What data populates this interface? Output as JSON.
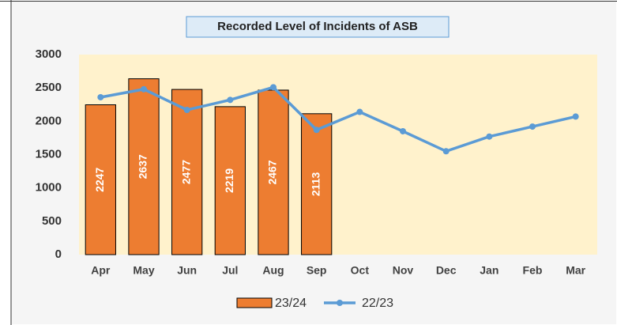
{
  "chart_data": {
    "type": "bar_line",
    "title": "Recorded Level of Incidents of ASB",
    "categories": [
      "Apr",
      "May",
      "Jun",
      "Jul",
      "Aug",
      "Sep",
      "Oct",
      "Nov",
      "Dec",
      "Jan",
      "Feb",
      "Mar"
    ],
    "series": [
      {
        "name": "23/24",
        "type": "bar",
        "color": "#ed7d31",
        "values": [
          2247,
          2637,
          2477,
          2219,
          2467,
          2113,
          null,
          null,
          null,
          null,
          null,
          null
        ]
      },
      {
        "name": "22/23",
        "type": "line",
        "color": "#5b9bd5",
        "values": [
          2360,
          2480,
          2170,
          2320,
          2510,
          1870,
          2140,
          1850,
          1550,
          1770,
          1920,
          2070
        ]
      }
    ],
    "ylim": [
      0,
      3000
    ],
    "yticks": [
      0,
      500,
      1000,
      1500,
      2000,
      2500,
      3000
    ],
    "grid": false,
    "legend": "bottom"
  }
}
